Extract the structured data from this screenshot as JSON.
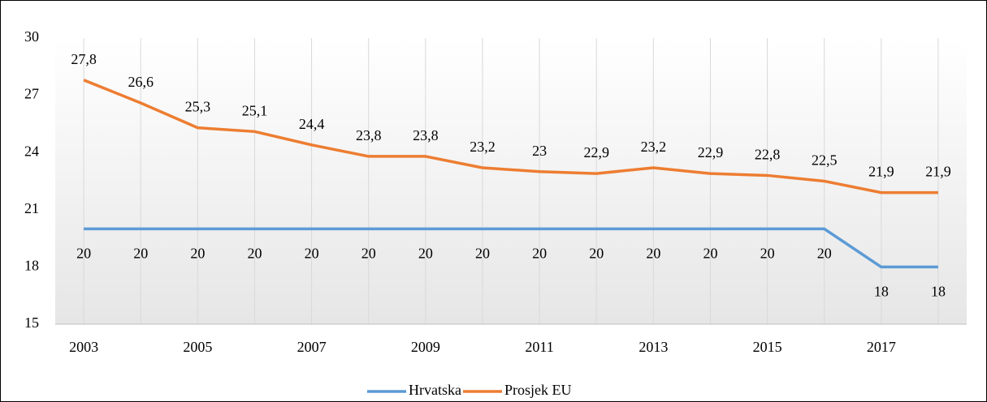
{
  "chart_data": {
    "type": "line",
    "x": [
      2003,
      2004,
      2005,
      2006,
      2007,
      2008,
      2009,
      2010,
      2011,
      2012,
      2013,
      2014,
      2015,
      2016,
      2017,
      2018
    ],
    "xlim": [
      2002.5,
      2018.5
    ],
    "xticks": [
      2003,
      2005,
      2007,
      2009,
      2011,
      2013,
      2015,
      2017
    ],
    "ylim": [
      15,
      30
    ],
    "yticks": [
      15,
      18,
      21,
      24,
      27,
      30
    ],
    "vertical_grid": true,
    "legend": "bottom",
    "series": [
      {
        "name": "Hrvatska",
        "color": "#5b9bd5",
        "values": [
          20,
          20,
          20,
          20,
          20,
          20,
          20,
          20,
          20,
          20,
          20,
          20,
          20,
          20,
          18,
          18
        ]
      },
      {
        "name": "Prosjek EU",
        "color": "#ed7d31",
        "values": [
          27.8,
          26.6,
          25.3,
          25.1,
          24.4,
          23.8,
          23.8,
          23.2,
          23,
          22.9,
          23.2,
          22.9,
          22.8,
          22.5,
          21.9,
          21.9
        ],
        "value_labels": [
          "27,8",
          "26,6",
          "25,3",
          "25,1",
          "24,4",
          "23,8",
          "23,8",
          "23,2",
          "23",
          "22,9",
          "23,2",
          "22,9",
          "22,8",
          "22,5",
          "21,9",
          "21,9"
        ]
      }
    ]
  }
}
